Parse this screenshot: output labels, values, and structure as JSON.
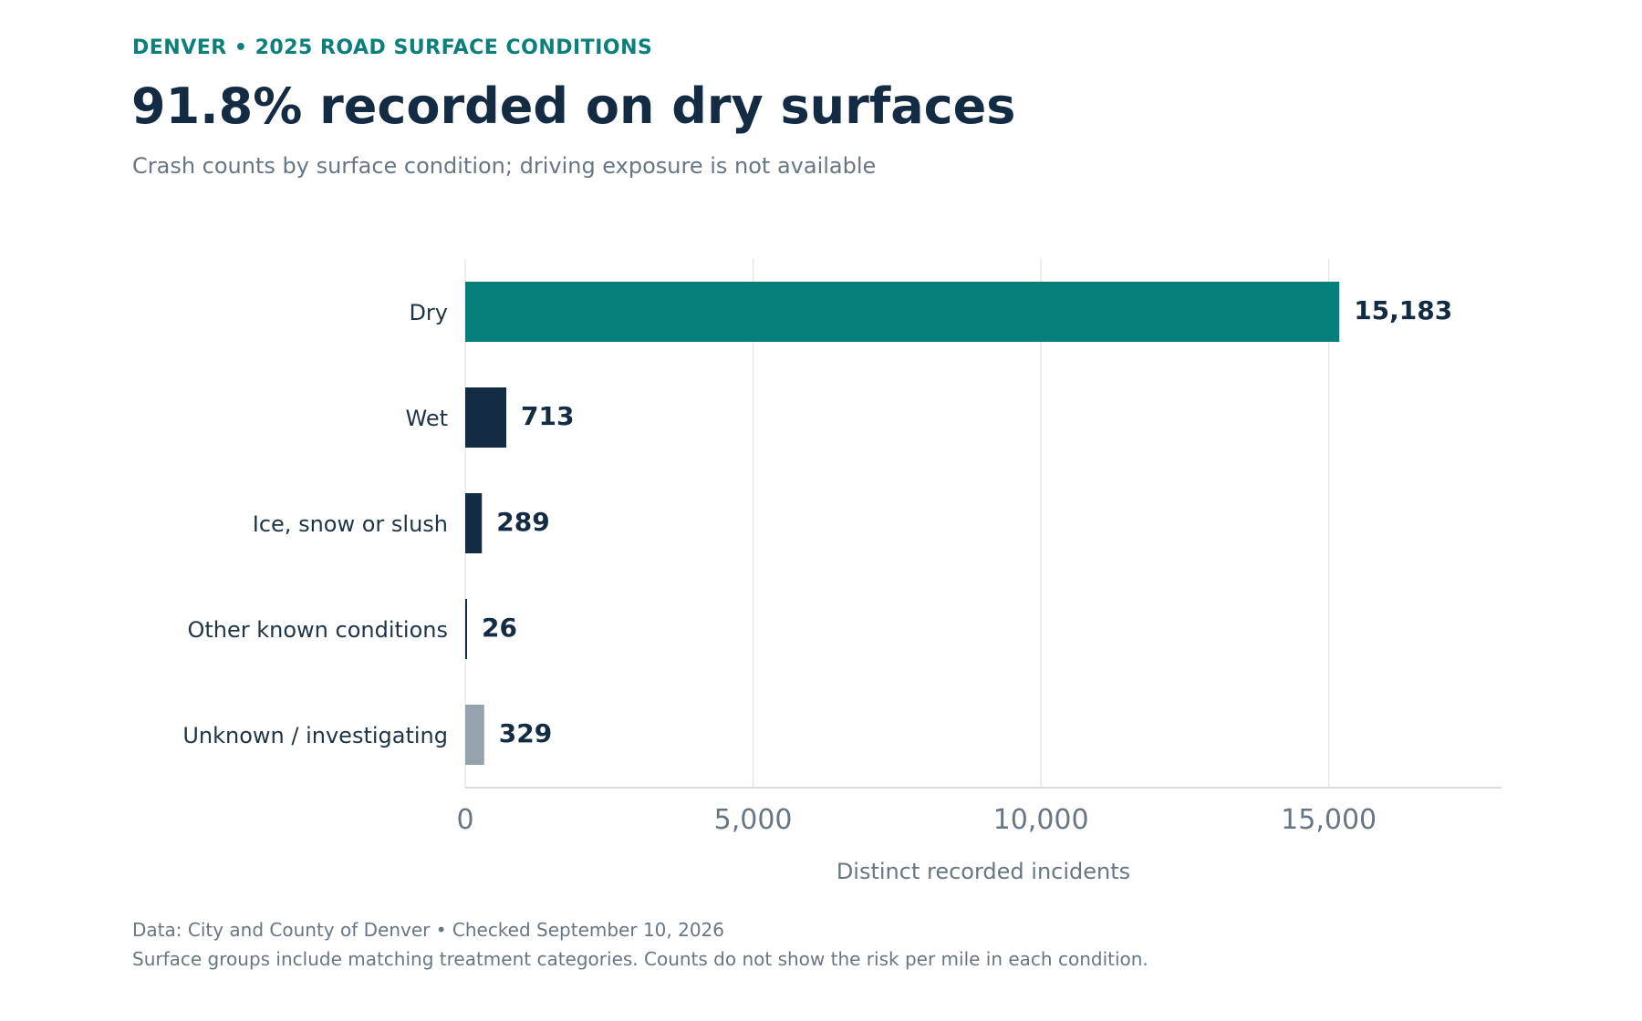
{
  "header": {
    "kicker": "DENVER • 2025 ROAD SURFACE CONDITIONS",
    "title": "91.8% recorded on dry surfaces",
    "subtitle": "Crash counts by surface condition; driving exposure is not available"
  },
  "chart_data": {
    "type": "bar",
    "orientation": "horizontal",
    "categories": [
      "Dry",
      "Wet",
      "Ice, snow or slush",
      "Other known conditions",
      "Unknown / investigating"
    ],
    "values": [
      15183,
      713,
      289,
      26,
      329
    ],
    "value_labels": [
      "15,183",
      "713",
      "289",
      "26",
      "329"
    ],
    "bar_colors": [
      "#047f79",
      "#132b43",
      "#132b43",
      "#132b43",
      "#94a3ab"
    ],
    "xlabel": "Distinct recorded incidents",
    "xlim": [
      0,
      18000
    ],
    "xticks": [
      0,
      5000,
      10000,
      15000
    ],
    "xtick_labels": [
      "0",
      "5,000",
      "10,000",
      "15,000"
    ],
    "grid": "vertical"
  },
  "footer": {
    "source": "Data: City and County of Denver • Checked September 10, 2026",
    "note": "Surface groups include matching treatment categories. Counts do not show the risk per mile in each condition."
  },
  "colors": {
    "accent": "#0b7f79",
    "dark": "#132b43",
    "muted": "#687684",
    "unknown": "#94a3ab",
    "grid": "#e6e8ea"
  }
}
